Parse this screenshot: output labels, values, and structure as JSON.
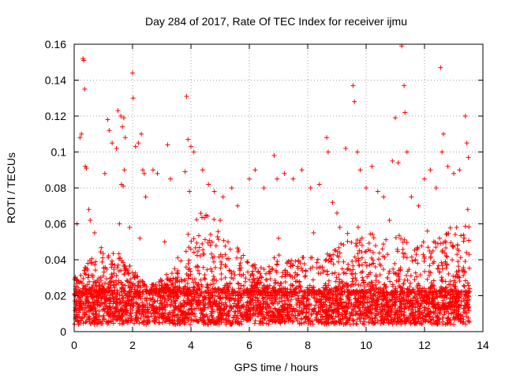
{
  "chart_data": {
    "type": "scatter",
    "title": "Day 284 of 2017, Rate Of TEC Index for receiver ijmu",
    "xlabel": "GPS time / hours",
    "ylabel": "ROTI / TECUs",
    "xlim": [
      0,
      14
    ],
    "ylim": [
      0,
      0.16
    ],
    "xticks": [
      "0",
      "2",
      "4",
      "6",
      "8",
      "10",
      "12",
      "14"
    ],
    "xtick_values": [
      0,
      2,
      4,
      6,
      8,
      10,
      12,
      14
    ],
    "yticks": [
      "0",
      "0.02",
      "0.04",
      "0.06",
      "0.08",
      "0.1",
      "0.12",
      "0.14",
      "0.16"
    ],
    "ytick_values": [
      0,
      0.02,
      0.04,
      0.06,
      0.08,
      0.1,
      0.12,
      0.14,
      0.16
    ],
    "grid": true,
    "marker": "+",
    "series_color": "#ff0000",
    "baseline": {
      "x_start": 0,
      "x_end": 13.55,
      "y_min": 0.004,
      "y_max": 0.022
    },
    "envelope": [
      [
        0.0,
        0.03
      ],
      [
        0.5,
        0.04
      ],
      [
        1.0,
        0.048
      ],
      [
        1.5,
        0.045
      ],
      [
        2.0,
        0.035
      ],
      [
        2.5,
        0.025
      ],
      [
        3.0,
        0.03
      ],
      [
        3.5,
        0.04
      ],
      [
        4.0,
        0.06
      ],
      [
        4.5,
        0.07
      ],
      [
        5.0,
        0.06
      ],
      [
        5.5,
        0.05
      ],
      [
        6.0,
        0.04
      ],
      [
        6.5,
        0.035
      ],
      [
        7.0,
        0.045
      ],
      [
        7.5,
        0.04
      ],
      [
        8.0,
        0.045
      ],
      [
        8.5,
        0.04
      ],
      [
        9.0,
        0.05
      ],
      [
        9.5,
        0.06
      ],
      [
        10.0,
        0.06
      ],
      [
        10.5,
        0.05
      ],
      [
        11.0,
        0.055
      ],
      [
        11.5,
        0.05
      ],
      [
        12.0,
        0.05
      ],
      [
        12.5,
        0.055
      ],
      [
        13.0,
        0.06
      ],
      [
        13.55,
        0.06
      ]
    ],
    "points": [
      [
        0.2,
        0.108
      ],
      [
        0.25,
        0.11
      ],
      [
        0.3,
        0.152
      ],
      [
        0.33,
        0.151
      ],
      [
        0.36,
        0.135
      ],
      [
        0.38,
        0.092
      ],
      [
        0.42,
        0.091
      ],
      [
        0.5,
        0.068
      ],
      [
        0.55,
        0.062
      ],
      [
        0.1,
        0.06
      ],
      [
        1.05,
        0.088
      ],
      [
        1.15,
        0.118
      ],
      [
        1.2,
        0.112
      ],
      [
        1.3,
        0.105
      ],
      [
        1.45,
        0.102
      ],
      [
        1.5,
        0.123
      ],
      [
        1.6,
        0.12
      ],
      [
        1.65,
        0.114
      ],
      [
        1.7,
        0.119
      ],
      [
        1.75,
        0.108
      ],
      [
        1.62,
        0.082
      ],
      [
        1.68,
        0.081
      ],
      [
        1.72,
        0.09
      ],
      [
        1.55,
        0.06
      ],
      [
        2.0,
        0.144
      ],
      [
        2.02,
        0.13
      ],
      [
        2.1,
        0.103
      ],
      [
        2.2,
        0.105
      ],
      [
        2.3,
        0.11
      ],
      [
        2.35,
        0.09
      ],
      [
        2.4,
        0.088
      ],
      [
        2.45,
        0.075
      ],
      [
        2.25,
        0.052
      ],
      [
        2.7,
        0.09
      ],
      [
        2.85,
        0.088
      ],
      [
        3.2,
        0.104
      ],
      [
        3.3,
        0.085
      ],
      [
        3.85,
        0.131
      ],
      [
        3.9,
        0.107
      ],
      [
        4.0,
        0.103
      ],
      [
        4.1,
        0.1
      ],
      [
        3.8,
        0.089
      ],
      [
        3.95,
        0.078
      ],
      [
        4.4,
        0.09
      ],
      [
        4.6,
        0.082
      ],
      [
        4.8,
        0.078
      ],
      [
        5.1,
        0.075
      ],
      [
        5.4,
        0.08
      ],
      [
        5.6,
        0.07
      ],
      [
        6.0,
        0.085
      ],
      [
        6.2,
        0.09
      ],
      [
        6.5,
        0.08
      ],
      [
        6.85,
        0.098
      ],
      [
        6.95,
        0.085
      ],
      [
        7.2,
        0.088
      ],
      [
        7.5,
        0.085
      ],
      [
        7.8,
        0.09
      ],
      [
        8.1,
        0.08
      ],
      [
        8.4,
        0.082
      ],
      [
        8.65,
        0.108
      ],
      [
        8.7,
        0.1
      ],
      [
        8.85,
        0.072
      ],
      [
        9.0,
        0.066
      ],
      [
        9.3,
        0.102
      ],
      [
        9.55,
        0.137
      ],
      [
        9.6,
        0.128
      ],
      [
        9.7,
        0.1
      ],
      [
        9.8,
        0.09
      ],
      [
        10.0,
        0.08
      ],
      [
        10.2,
        0.092
      ],
      [
        10.4,
        0.078
      ],
      [
        10.6,
        0.075
      ],
      [
        10.9,
        0.095
      ],
      [
        11.0,
        0.119
      ],
      [
        11.1,
        0.094
      ],
      [
        11.22,
        0.159
      ],
      [
        11.3,
        0.137
      ],
      [
        11.33,
        0.122
      ],
      [
        11.4,
        0.1
      ],
      [
        11.55,
        0.075
      ],
      [
        11.8,
        0.07
      ],
      [
        12.0,
        0.085
      ],
      [
        12.2,
        0.09
      ],
      [
        12.4,
        0.08
      ],
      [
        12.55,
        0.147
      ],
      [
        12.6,
        0.1
      ],
      [
        12.65,
        0.11
      ],
      [
        12.8,
        0.092
      ],
      [
        13.0,
        0.088
      ],
      [
        13.2,
        0.09
      ],
      [
        13.4,
        0.12
      ],
      [
        13.45,
        0.105
      ],
      [
        13.5,
        0.097
      ],
      [
        13.48,
        0.068
      ],
      [
        0.7,
        0.055
      ],
      [
        1.9,
        0.058
      ],
      [
        3.1,
        0.05
      ],
      [
        5.0,
        0.062
      ],
      [
        7.0,
        0.052
      ],
      [
        8.2,
        0.055
      ],
      [
        9.1,
        0.058
      ],
      [
        10.8,
        0.062
      ],
      [
        12.1,
        0.056
      ],
      [
        13.1,
        0.058
      ]
    ]
  }
}
